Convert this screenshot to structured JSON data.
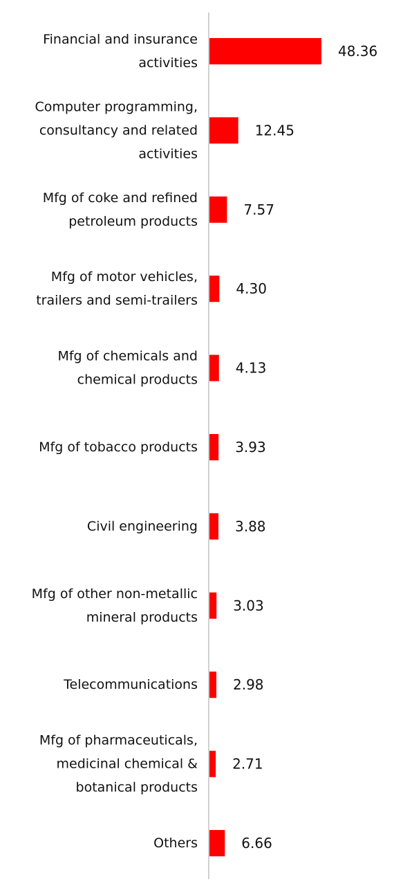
{
  "chart_data": {
    "type": "bar",
    "orientation": "horizontal",
    "title": "",
    "xlabel": "",
    "ylabel": "",
    "categories": [
      [
        "Financial and insurance",
        "activities"
      ],
      [
        "Computer programming,",
        "consultancy and related",
        "activities"
      ],
      [
        "Mfg of coke and refined",
        "petroleum products"
      ],
      [
        "Mfg of motor vehicles,",
        "trailers and semi-trailers"
      ],
      [
        "Mfg of chemicals and",
        "chemical products"
      ],
      [
        "Mfg of tobacco products"
      ],
      [
        "Civil engineering"
      ],
      [
        "Mfg of other non-metallic",
        "mineral products"
      ],
      [
        "Telecommunications"
      ],
      [
        "Mfg of pharmaceuticals,",
        "medicinal chemical &",
        "botanical products"
      ],
      [
        "Others"
      ]
    ],
    "values": [
      48.36,
      12.45,
      7.57,
      4.3,
      4.13,
      3.93,
      3.88,
      3.03,
      2.98,
      2.71,
      6.66
    ],
    "value_labels": [
      "48.36",
      "12.45",
      "7.57",
      "4.30",
      "4.13",
      "3.93",
      "3.88",
      "3.03",
      "2.98",
      "2.71",
      "6.66"
    ],
    "xlim": [
      0,
      48.36
    ],
    "bar_color": "#ff0000",
    "axis_color": "#d0d0d0",
    "grid": false,
    "legend": "none"
  }
}
